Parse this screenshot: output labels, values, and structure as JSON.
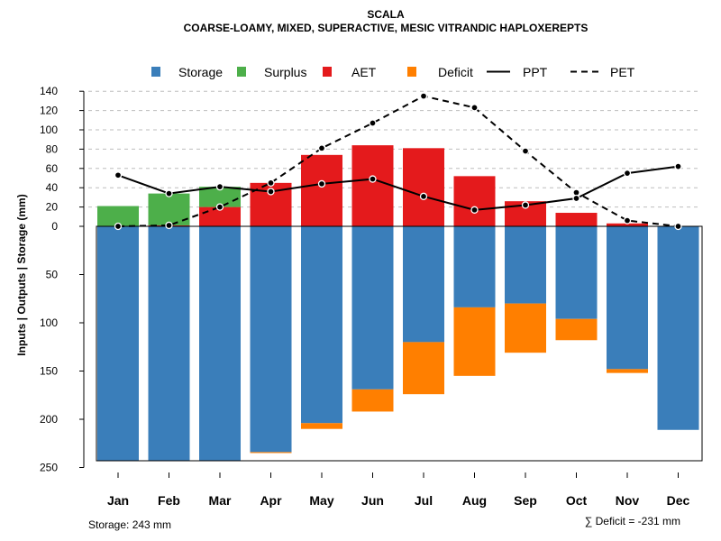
{
  "chart_data": {
    "type": "bar",
    "title": "SCALA",
    "subtitle": "COARSE-LOAMY, MIXED, SUPERACTIVE, MESIC VITRANDIC HAPLOXEREPTS",
    "ylabel": "Inputs | Outputs | Storage    (mm)",
    "categories": [
      "Jan",
      "Feb",
      "Mar",
      "Apr",
      "May",
      "Jun",
      "Jul",
      "Aug",
      "Sep",
      "Oct",
      "Nov",
      "Dec"
    ],
    "legend": {
      "storage": "Storage",
      "surplus": "Surplus",
      "aet": "AET",
      "deficit": "Deficit",
      "ppt": "PPT",
      "pet": "PET"
    },
    "colors": {
      "storage": "#3A7EBA",
      "surplus": "#4DAF4A",
      "aet": "#E41A1C",
      "deficit": "#FF7F00",
      "ppt": "#000000",
      "pet": "#000000",
      "grid": "#BEBEBE"
    },
    "upper_axis": {
      "ylim": [
        0,
        140
      ],
      "ticks": [
        0,
        20,
        40,
        60,
        80,
        100,
        120,
        140
      ],
      "tick_labels": [
        "0",
        "20",
        "40",
        "60",
        "80",
        "100",
        "120",
        "140"
      ]
    },
    "lower_axis": {
      "ylim": [
        0,
        250
      ],
      "ticks": [
        0,
        50,
        100,
        150,
        200,
        250
      ],
      "tick_labels": [
        "0",
        "50",
        "100",
        "150",
        "200",
        "250"
      ]
    },
    "series": {
      "ppt": [
        53,
        34,
        41,
        36,
        44,
        49,
        31,
        17,
        22,
        29,
        55,
        62
      ],
      "pet": [
        0,
        1,
        20,
        45,
        81,
        107,
        135,
        123,
        78,
        35,
        6,
        0
      ],
      "aet": [
        0,
        1,
        20,
        45,
        74,
        84,
        81,
        52,
        26,
        14,
        3,
        0
      ],
      "surplus": [
        21,
        33,
        21,
        0,
        0,
        0,
        0,
        0,
        0,
        0,
        0,
        0
      ],
      "storage": [
        243,
        243,
        243,
        234,
        204,
        169,
        120,
        84,
        80,
        96,
        148,
        211
      ],
      "deficit": [
        0,
        0,
        0,
        1,
        6,
        23,
        54,
        71,
        51,
        22,
        4,
        0
      ]
    },
    "annotations": {
      "storage_text": "Storage: 243 mm",
      "deficit_text": "∑ Deficit = -231 mm"
    }
  }
}
